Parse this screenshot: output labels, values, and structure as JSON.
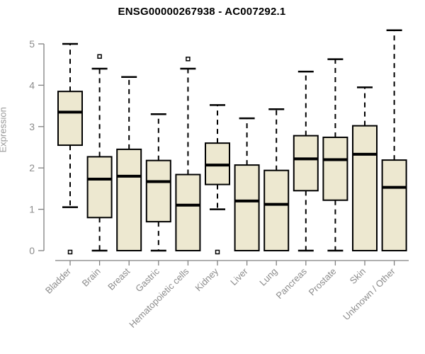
{
  "chart_data": {
    "type": "boxplot",
    "title": "ENSG00000267938 - AC007292.1",
    "xlabel": "",
    "ylabel": "Expression",
    "ylim": [
      0,
      5
    ],
    "yticks": [
      0,
      1,
      2,
      3,
      4,
      5
    ],
    "grid": false,
    "legend": "none",
    "categories": [
      "Bladder",
      "Brain",
      "Breast",
      "Gastric",
      "Hematopoietic cells",
      "Kidney",
      "Liver",
      "Lung",
      "Pancreas",
      "Prostate",
      "Skin",
      "Unknown / Other"
    ],
    "series": [
      {
        "name": "Bladder",
        "whisker_low": 1.05,
        "q1": 2.55,
        "median": 3.35,
        "q3": 3.85,
        "whisker_high": 5.0,
        "outliers": [
          0
        ]
      },
      {
        "name": "Brain",
        "whisker_low": 0,
        "q1": 0.8,
        "median": 1.73,
        "q3": 2.27,
        "whisker_high": 4.4,
        "outliers": [
          4.73
        ]
      },
      {
        "name": "Breast",
        "whisker_low": 0,
        "q1": 0,
        "median": 1.8,
        "q3": 2.45,
        "whisker_high": 4.2,
        "outliers": []
      },
      {
        "name": "Gastric",
        "whisker_low": 0,
        "q1": 0.7,
        "median": 1.67,
        "q3": 2.18,
        "whisker_high": 3.3,
        "outliers": []
      },
      {
        "name": "Hematopoietic cells",
        "whisker_low": 0,
        "q1": 0,
        "median": 1.1,
        "q3": 1.84,
        "whisker_high": 4.4,
        "outliers": [
          4.67
        ]
      },
      {
        "name": "Kidney",
        "whisker_low": 1.0,
        "q1": 1.6,
        "median": 2.07,
        "q3": 2.6,
        "whisker_high": 3.52,
        "outliers": [
          0
        ]
      },
      {
        "name": "Liver",
        "whisker_low": 0,
        "q1": 0,
        "median": 1.2,
        "q3": 2.07,
        "whisker_high": 3.2,
        "outliers": []
      },
      {
        "name": "Lung",
        "whisker_low": 0,
        "q1": 0,
        "median": 1.12,
        "q3": 1.94,
        "whisker_high": 3.42,
        "outliers": []
      },
      {
        "name": "Pancreas",
        "whisker_low": 0,
        "q1": 1.45,
        "median": 2.22,
        "q3": 2.78,
        "whisker_high": 4.33,
        "outliers": []
      },
      {
        "name": "Prostate",
        "whisker_low": 0,
        "q1": 1.22,
        "median": 2.2,
        "q3": 2.74,
        "whisker_high": 4.63,
        "outliers": []
      },
      {
        "name": "Skin",
        "whisker_low": 0,
        "q1": 0,
        "median": 2.33,
        "q3": 3.02,
        "whisker_high": 3.95,
        "outliers": []
      },
      {
        "name": "Unknown / Other",
        "whisker_low": 0,
        "q1": 0,
        "median": 1.53,
        "q3": 2.19,
        "whisker_high": 5.33,
        "outliers": []
      }
    ],
    "colors": {
      "box_fill": "#EDE8D0",
      "box_border": "#000000",
      "median": "#000000",
      "whisker": "#000000",
      "axis": "#808080",
      "tick_label": "#8C8C8C",
      "title": "#000000",
      "background": "#FFFFFF"
    }
  }
}
